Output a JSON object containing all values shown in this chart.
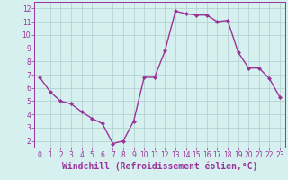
{
  "x": [
    0,
    1,
    2,
    3,
    4,
    5,
    6,
    7,
    8,
    9,
    10,
    11,
    12,
    13,
    14,
    15,
    16,
    17,
    18,
    19,
    20,
    21,
    22,
    23
  ],
  "y": [
    6.8,
    5.7,
    5.0,
    4.8,
    4.2,
    3.7,
    3.3,
    1.8,
    2.0,
    3.5,
    6.8,
    6.8,
    8.8,
    11.8,
    11.6,
    11.5,
    11.5,
    11.0,
    11.1,
    8.7,
    7.5,
    7.5,
    6.7,
    5.3
  ],
  "line_color": "#993399",
  "marker": "D",
  "marker_size": 2.0,
  "line_width": 1.0,
  "bg_color": "#d6f0f0",
  "grid_color": "#b0cccc",
  "xlabel": "Windchill (Refroidissement éolien,°C)",
  "xlabel_color": "#993399",
  "tick_color": "#993399",
  "ylim": [
    1.5,
    12.5
  ],
  "yticks": [
    2,
    3,
    4,
    5,
    6,
    7,
    8,
    9,
    10,
    11,
    12
  ],
  "xticks": [
    0,
    1,
    2,
    3,
    4,
    5,
    6,
    7,
    8,
    9,
    10,
    11,
    12,
    13,
    14,
    15,
    16,
    17,
    18,
    19,
    20,
    21,
    22,
    23
  ],
  "tick_fontsize": 5.5,
  "xlabel_fontsize": 7.0
}
